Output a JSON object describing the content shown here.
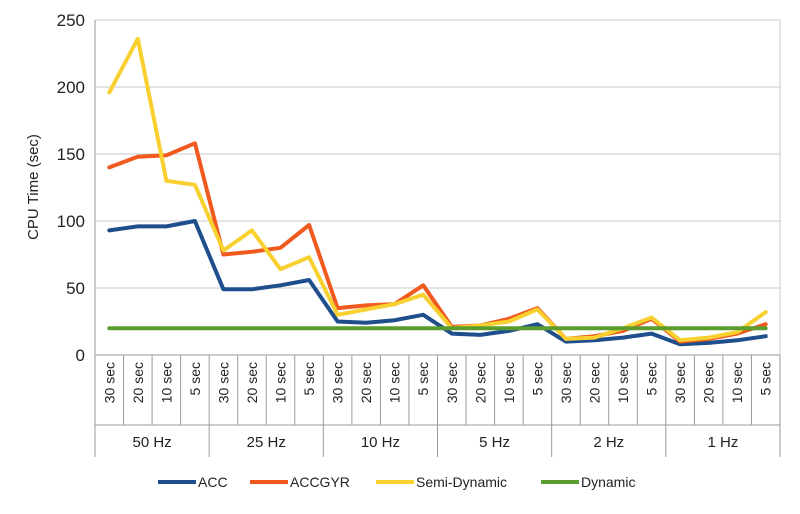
{
  "chart_data": {
    "type": "line",
    "title": "",
    "xlabel": "",
    "ylabel": "CPU Time (sec)",
    "ylim": [
      0,
      250
    ],
    "yticks": [
      0,
      50,
      100,
      150,
      200,
      250
    ],
    "grid": true,
    "legend_position": "bottom",
    "groups": [
      "50 Hz",
      "25 Hz",
      "10 Hz",
      "5 Hz",
      "2 Hz",
      "1 Hz"
    ],
    "sub_categories": [
      "30 sec",
      "20 sec",
      "10 sec",
      "5 sec"
    ],
    "series": [
      {
        "name": "ACC",
        "color": "#1f4e8c",
        "values": [
          93,
          96,
          96,
          100,
          49,
          49,
          52,
          56,
          25,
          24,
          26,
          30,
          16,
          15,
          18,
          23,
          10,
          11,
          13,
          16,
          8,
          9,
          11,
          14
        ]
      },
      {
        "name": "ACCGYR",
        "color": "#f05a1e",
        "values": [
          140,
          148,
          149,
          158,
          75,
          77,
          80,
          97,
          35,
          37,
          38,
          52,
          21,
          22,
          27,
          35,
          12,
          14,
          18,
          27,
          10,
          12,
          16,
          23
        ]
      },
      {
        "name": "Semi-Dynamic",
        "color": "#f8d030",
        "values": [
          196,
          236,
          130,
          127,
          78,
          93,
          64,
          73,
          30,
          34,
          38,
          45,
          20,
          22,
          25,
          34,
          12,
          13,
          20,
          28,
          11,
          13,
          17,
          32
        ]
      },
      {
        "name": "Dynamic",
        "color": "#5a9c2e",
        "values": [
          20,
          20,
          20,
          20,
          20,
          20,
          20,
          20,
          20,
          20,
          20,
          20,
          20,
          20,
          20,
          20,
          20,
          20,
          20,
          20,
          20,
          20,
          20,
          20
        ]
      }
    ]
  }
}
